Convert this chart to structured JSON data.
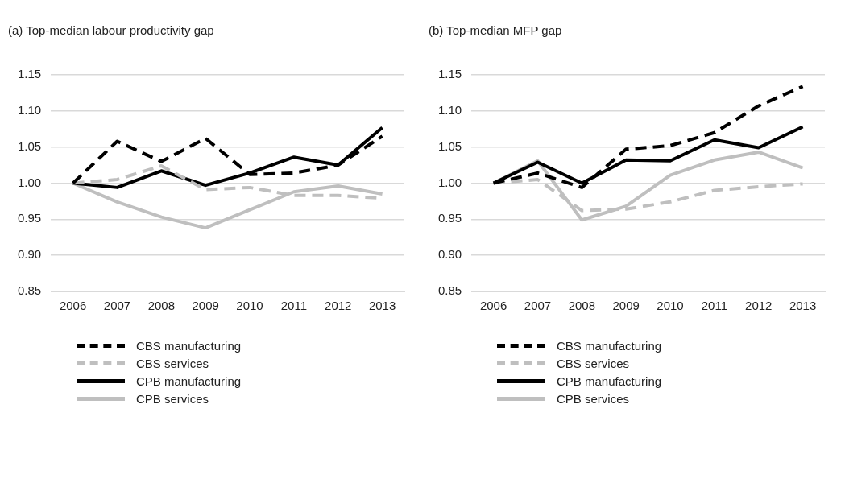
{
  "chart_data": [
    {
      "type": "line",
      "title": "(a) Top-median labour productivity gap",
      "categories": [
        "2006",
        "2007",
        "2008",
        "2009",
        "2010",
        "2011",
        "2012",
        "2013"
      ],
      "ylim": [
        0.85,
        1.15
      ],
      "yticks": [
        {
          "value": 0.85,
          "label": "0.85"
        },
        {
          "value": 0.9,
          "label": "0.90"
        },
        {
          "value": 0.95,
          "label": "0.95"
        },
        {
          "value": 1.0,
          "label": "1.00"
        },
        {
          "value": 1.05,
          "label": "1.05"
        },
        {
          "value": 1.1,
          "label": "1.10"
        },
        {
          "value": 1.15,
          "label": "1.15"
        }
      ],
      "grid": "y",
      "legend": "bottom",
      "marker": "none",
      "series": [
        {
          "name": "CBS manufacturing",
          "color": "#000000",
          "line_style": "dashed",
          "values": [
            1.0,
            1.058,
            1.03,
            1.062,
            1.012,
            1.014,
            1.025,
            1.065
          ]
        },
        {
          "name": "CBS services",
          "color": "#bfbfbf",
          "line_style": "dashed",
          "values": [
            1.0,
            1.005,
            1.024,
            0.991,
            0.994,
            0.983,
            0.983,
            0.979
          ]
        },
        {
          "name": "CPB manufacturing",
          "color": "#000000",
          "line_style": "solid",
          "values": [
            1.0,
            0.994,
            1.017,
            0.997,
            1.014,
            1.036,
            1.025,
            1.077
          ]
        },
        {
          "name": "CPB services",
          "color": "#bfbfbf",
          "line_style": "solid",
          "values": [
            1.0,
            0.974,
            0.953,
            0.938,
            0.963,
            0.988,
            0.996,
            0.985
          ]
        }
      ]
    },
    {
      "type": "line",
      "title": "(b) Top-median MFP gap",
      "categories": [
        "2006",
        "2007",
        "2008",
        "2009",
        "2010",
        "2011",
        "2012",
        "2013"
      ],
      "ylim": [
        0.85,
        1.15
      ],
      "yticks": [
        {
          "value": 0.85,
          "label": "0.85"
        },
        {
          "value": 0.9,
          "label": "0.90"
        },
        {
          "value": 0.95,
          "label": "0.95"
        },
        {
          "value": 1.0,
          "label": "1.00"
        },
        {
          "value": 1.05,
          "label": "1.05"
        },
        {
          "value": 1.1,
          "label": "1.10"
        },
        {
          "value": 1.15,
          "label": "1.15"
        }
      ],
      "grid": "y",
      "legend": "bottom",
      "marker": "none",
      "series": [
        {
          "name": "CBS manufacturing",
          "color": "#000000",
          "line_style": "dashed",
          "values": [
            1.0,
            1.014,
            0.994,
            1.047,
            1.052,
            1.07,
            1.107,
            1.134
          ]
        },
        {
          "name": "CBS services",
          "color": "#bfbfbf",
          "line_style": "dashed",
          "values": [
            1.0,
            1.005,
            0.962,
            0.964,
            0.974,
            0.99,
            0.995,
            0.999
          ]
        },
        {
          "name": "CPB manufacturing",
          "color": "#000000",
          "line_style": "solid",
          "values": [
            1.0,
            1.029,
            1.0,
            1.032,
            1.031,
            1.06,
            1.049,
            1.078
          ]
        },
        {
          "name": "CPB services",
          "color": "#bfbfbf",
          "line_style": "solid",
          "values": [
            1.0,
            1.031,
            0.949,
            0.968,
            1.011,
            1.032,
            1.043,
            1.021
          ]
        }
      ]
    }
  ]
}
